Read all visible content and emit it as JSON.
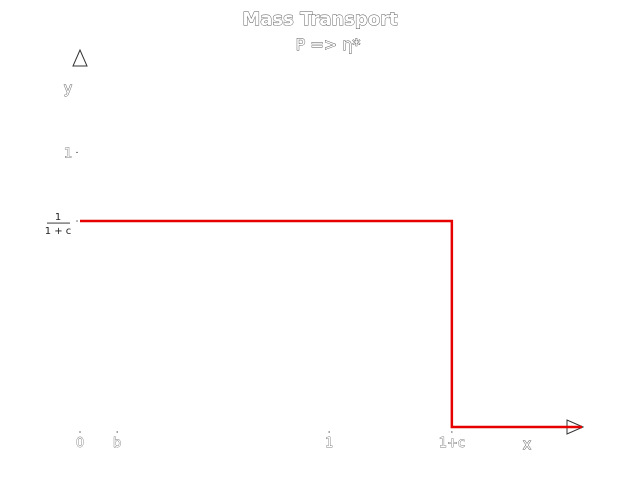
{
  "chart_data": {
    "type": "line",
    "title": "Mass Transport",
    "subtitle": "P => η*",
    "xlabel": "x",
    "ylabel": "y",
    "xlim": [
      0,
      1.35
    ],
    "ylim": [
      0,
      1.3
    ],
    "x_ticks": [
      {
        "value": 0,
        "label": "0"
      },
      {
        "value": 0.1,
        "label": "b"
      },
      {
        "value": 0.67,
        "label": "1"
      },
      {
        "value": 1.0,
        "label": "1+c"
      }
    ],
    "y_ticks": [
      {
        "value": 1.0,
        "label": "1"
      },
      {
        "value": 0.75,
        "label_num": "1",
        "label_den": "1 + c"
      }
    ],
    "series": [
      {
        "color": "#e60000",
        "points": [
          [
            0,
            0.75
          ],
          [
            1.0,
            0.75
          ],
          [
            1.0,
            0
          ],
          [
            1.35,
            0
          ]
        ]
      }
    ],
    "grid": false
  }
}
